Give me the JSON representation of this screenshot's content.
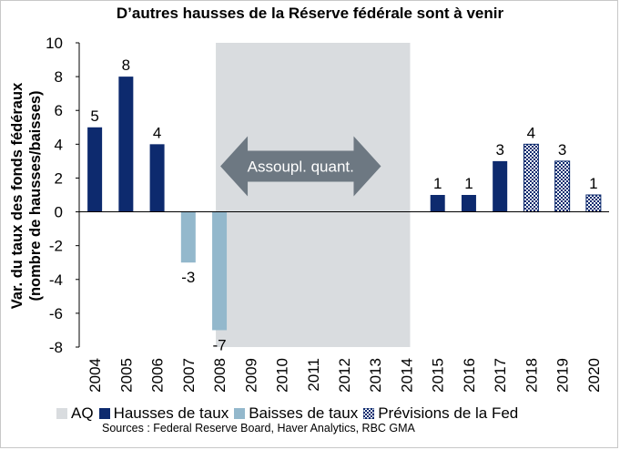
{
  "chart_data": {
    "type": "bar",
    "title": "D’autres hausses de la Réserve fédérale sont à venir",
    "ylabel": [
      "Var. du taux des fonds fédéraux",
      "(nombre de hausses/baisses)"
    ],
    "xlabel": "",
    "ylim": [
      -8,
      10
    ],
    "yticks": [
      "10",
      "8",
      "6",
      "4",
      "2",
      "0",
      "-2",
      "-4",
      "-6",
      "-8"
    ],
    "categories": [
      "2004",
      "2005",
      "2006",
      "2007",
      "2008",
      "2009",
      "2010",
      "2011",
      "2012",
      "2013",
      "2014",
      "2015",
      "2016",
      "2017",
      "2018",
      "2019",
      "2020"
    ],
    "series": [
      {
        "name": "Hausses de taux",
        "color": "#0d2a6e",
        "values": [
          5,
          8,
          4,
          null,
          null,
          null,
          null,
          null,
          null,
          null,
          null,
          1,
          1,
          3,
          null,
          null,
          null
        ],
        "labels": [
          "5",
          "8",
          "4",
          "",
          "",
          "",
          "",
          "",
          "",
          "",
          "",
          "1",
          "1",
          "3",
          "",
          "",
          ""
        ]
      },
      {
        "name": "Baisses de taux",
        "color": "#93b8cc",
        "values": [
          null,
          null,
          null,
          -3,
          -7,
          null,
          null,
          null,
          null,
          null,
          null,
          null,
          null,
          null,
          null,
          null,
          null
        ],
        "labels": [
          "",
          "",
          "",
          "-3",
          "-7",
          "",
          "",
          "",
          "",
          "",
          "",
          "",
          "",
          "",
          "",
          "",
          ""
        ]
      },
      {
        "name": "Prévisions de la Fed",
        "color": "#0d2a6e",
        "pattern": "checkered",
        "values": [
          null,
          null,
          null,
          null,
          null,
          null,
          null,
          null,
          null,
          null,
          null,
          null,
          null,
          null,
          4,
          3,
          1
        ],
        "labels": [
          "",
          "",
          "",
          "",
          "",
          "",
          "",
          "",
          "",
          "",
          "",
          "",
          "",
          "",
          "4",
          "3",
          "1"
        ]
      }
    ],
    "shaded_region": {
      "name": "AQ",
      "from": "2008",
      "to": "2014",
      "color": "#d9dcdf"
    },
    "annotation": {
      "text": "Assoupl. quant.",
      "style": "double-arrow",
      "color": "#6d7882"
    },
    "grid": false,
    "legend_position": "bottom"
  },
  "legend": {
    "items": [
      {
        "label": "AQ",
        "color": "#d9dcdf"
      },
      {
        "label": "Hausses de taux",
        "color": "#0d2a6e"
      },
      {
        "label": "Baisses de taux",
        "color": "#93b8cc"
      },
      {
        "label": "Prévisions de la Fed",
        "color": "#0d2a6e",
        "pattern": "checkered"
      }
    ]
  },
  "footer": {
    "sources": "Sources : Federal Reserve Board, Haver Analytics, RBC GMA"
  }
}
